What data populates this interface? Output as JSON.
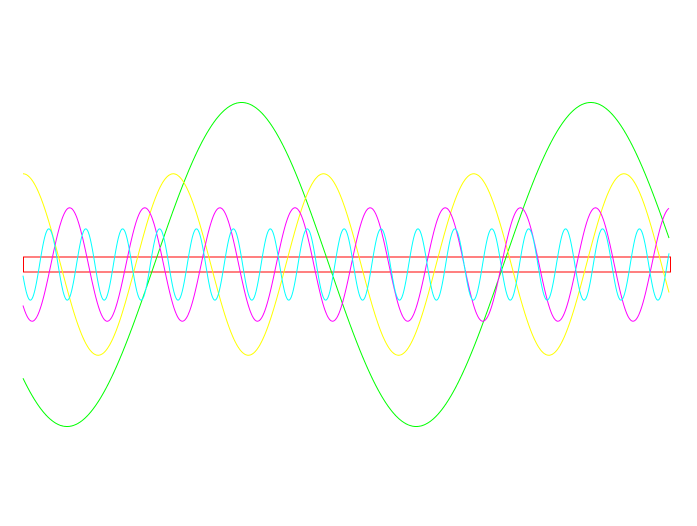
{
  "chart_data": {
    "type": "line",
    "title": "",
    "xlabel": "",
    "ylabel": "",
    "grid": false,
    "legend": "none",
    "xlim": [
      0,
      1
    ],
    "ylim": [
      -1,
      1
    ],
    "series": [
      {
        "color": "#00ff00",
        "amplitude": 1.0,
        "cycles": 1.85,
        "phase": 3.92
      },
      {
        "color": "#ffff00",
        "amplitude": 0.56,
        "cycles": 4.3,
        "phase": 1.57
      },
      {
        "color": "#ff00ff",
        "amplitude": 0.35,
        "cycles": 8.6,
        "phase": 3.95
      },
      {
        "color": "#00ffff",
        "amplitude": 0.22,
        "cycles": 17.5,
        "phase": 3.46
      }
    ],
    "reference_band": {
      "color": "#ff0000",
      "y_range": [
        -0.02,
        0.02
      ]
    }
  }
}
